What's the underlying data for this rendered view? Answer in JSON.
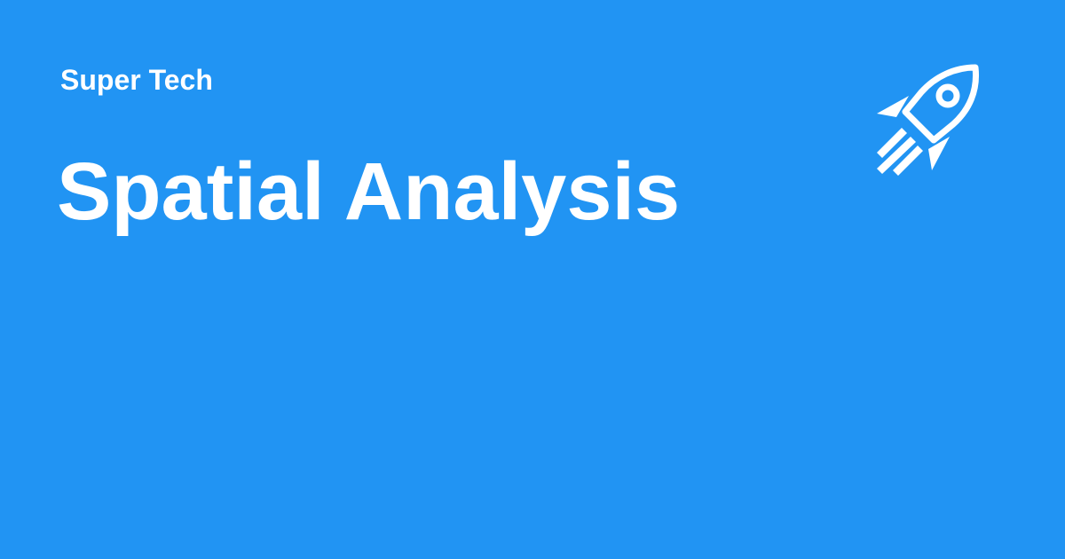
{
  "brand": {
    "name": "Super Tech"
  },
  "article": {
    "title": "Spatial Analysis"
  },
  "decoration": {
    "icon": "rocket-icon"
  },
  "colors": {
    "background": "#2194f3",
    "foreground": "#ffffff"
  }
}
